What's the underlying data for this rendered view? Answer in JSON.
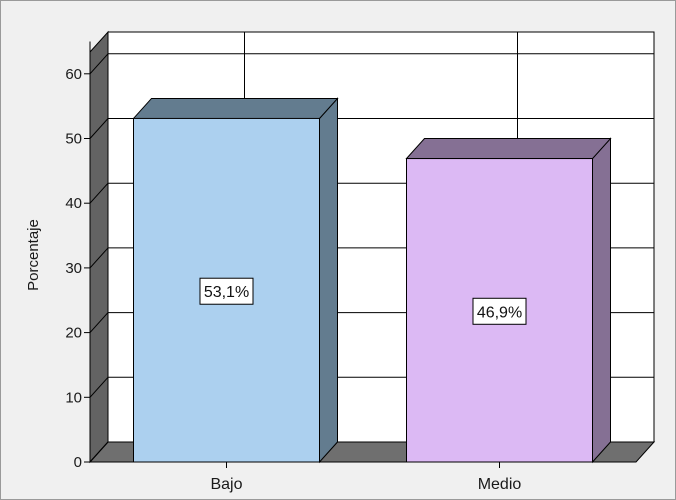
{
  "chart_data": {
    "type": "bar",
    "categories": [
      "Bajo",
      "Medio"
    ],
    "values": [
      53.1,
      46.9
    ],
    "data_labels": [
      "53,1%",
      "46,9%"
    ],
    "ylabel": "Porcentaje",
    "ylim": [
      0,
      65
    ],
    "yticks": [
      0,
      10,
      20,
      30,
      40,
      50,
      60
    ],
    "yticks_labels": [
      "0",
      "10",
      "20",
      "30",
      "40",
      "50",
      "60"
    ],
    "grid": true,
    "style": "3d",
    "colors": {
      "bars_front": [
        "#acd0ef",
        "#dcb9f4"
      ],
      "bars_side": [
        "#637c8f",
        "#857094"
      ],
      "bars_top": [
        "#637c8f",
        "#857094"
      ],
      "wall_left": "#636363",
      "floor": "#6f6f6f",
      "gridline": "#000000",
      "frame": "#9a9a9a",
      "background": "#f0f0f0",
      "plot_area": "#ffffff"
    }
  }
}
